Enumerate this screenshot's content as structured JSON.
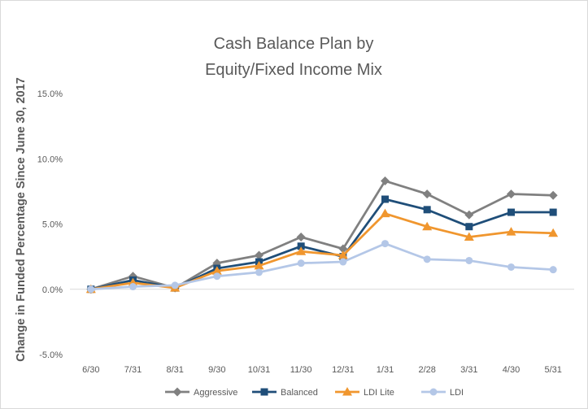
{
  "chart_data": {
    "type": "line",
    "title_lines": [
      "Cash Balance Plan by",
      "Equity/Fixed Income Mix"
    ],
    "ylabel": "Change in Funded Percentage Since June 30, 2017",
    "xlabel": "",
    "categories": [
      "6/30",
      "7/31",
      "8/31",
      "9/30",
      "10/31",
      "11/30",
      "12/31",
      "1/31",
      "2/28",
      "3/31",
      "4/30",
      "5/31"
    ],
    "ylim": [
      -5.0,
      15.0
    ],
    "yticks": [
      -5.0,
      0.0,
      5.0,
      10.0,
      15.0
    ],
    "ytick_labels": [
      "-5.0%",
      "0.0%",
      "5.0%",
      "10.0%",
      "15.0%"
    ],
    "grid": false,
    "legend_position": "bottom",
    "series": [
      {
        "name": "Aggressive",
        "color": "#808080",
        "marker": "diamond",
        "values": [
          0.0,
          1.0,
          0.1,
          2.0,
          2.6,
          4.0,
          3.1,
          8.3,
          7.3,
          5.7,
          7.3,
          7.2
        ]
      },
      {
        "name": "Balanced",
        "color": "#1f4e79",
        "marker": "square",
        "values": [
          0.0,
          0.7,
          0.1,
          1.6,
          2.1,
          3.3,
          2.5,
          6.9,
          6.1,
          4.8,
          5.9,
          5.9
        ]
      },
      {
        "name": "LDI Lite",
        "color": "#f0962e",
        "marker": "triangle",
        "values": [
          0.0,
          0.5,
          0.1,
          1.4,
          1.8,
          2.9,
          2.6,
          5.8,
          4.8,
          4.0,
          4.4,
          4.3
        ]
      },
      {
        "name": "LDI",
        "color": "#b4c7e7",
        "marker": "circle",
        "values": [
          0.0,
          0.2,
          0.3,
          1.0,
          1.3,
          2.0,
          2.1,
          3.5,
          2.3,
          2.2,
          1.7,
          1.5
        ]
      }
    ]
  }
}
